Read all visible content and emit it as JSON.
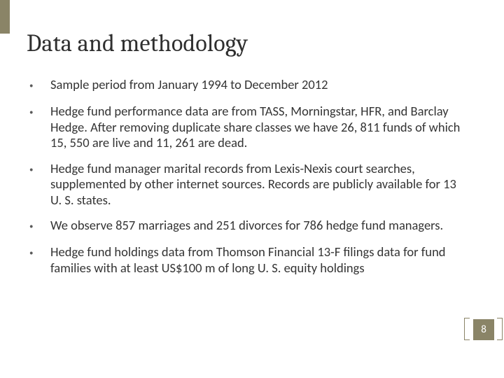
{
  "colors": {
    "accent": "#8a8467",
    "text": "#343434",
    "title": "#2f2f2f",
    "background": "#ffffff"
  },
  "typography": {
    "title_family": "Cambria",
    "title_size_pt": 26,
    "body_family": "Calibri",
    "body_size_pt": 14
  },
  "title": "Data and methodology",
  "bullets": [
    "Sample period from January 1994 to December 2012",
    "Hedge fund performance data are from TASS, Morningstar, HFR, and Barclay Hedge. After removing duplicate share classes we have 26, 811 funds of which 15, 550 are live and 11, 261 are dead.",
    "Hedge fund manager marital records from Lexis-Nexis court searches, supplemented by other internet sources. Records are publicly available for 13 U. S. states.",
    "We observe 857 marriages and 251 divorces for 786 hedge fund managers.",
    "Hedge fund holdings data from Thomson Financial 13-F filings data for fund families with at least US$100 m of long U. S. equity holdings"
  ],
  "page_number": "8"
}
